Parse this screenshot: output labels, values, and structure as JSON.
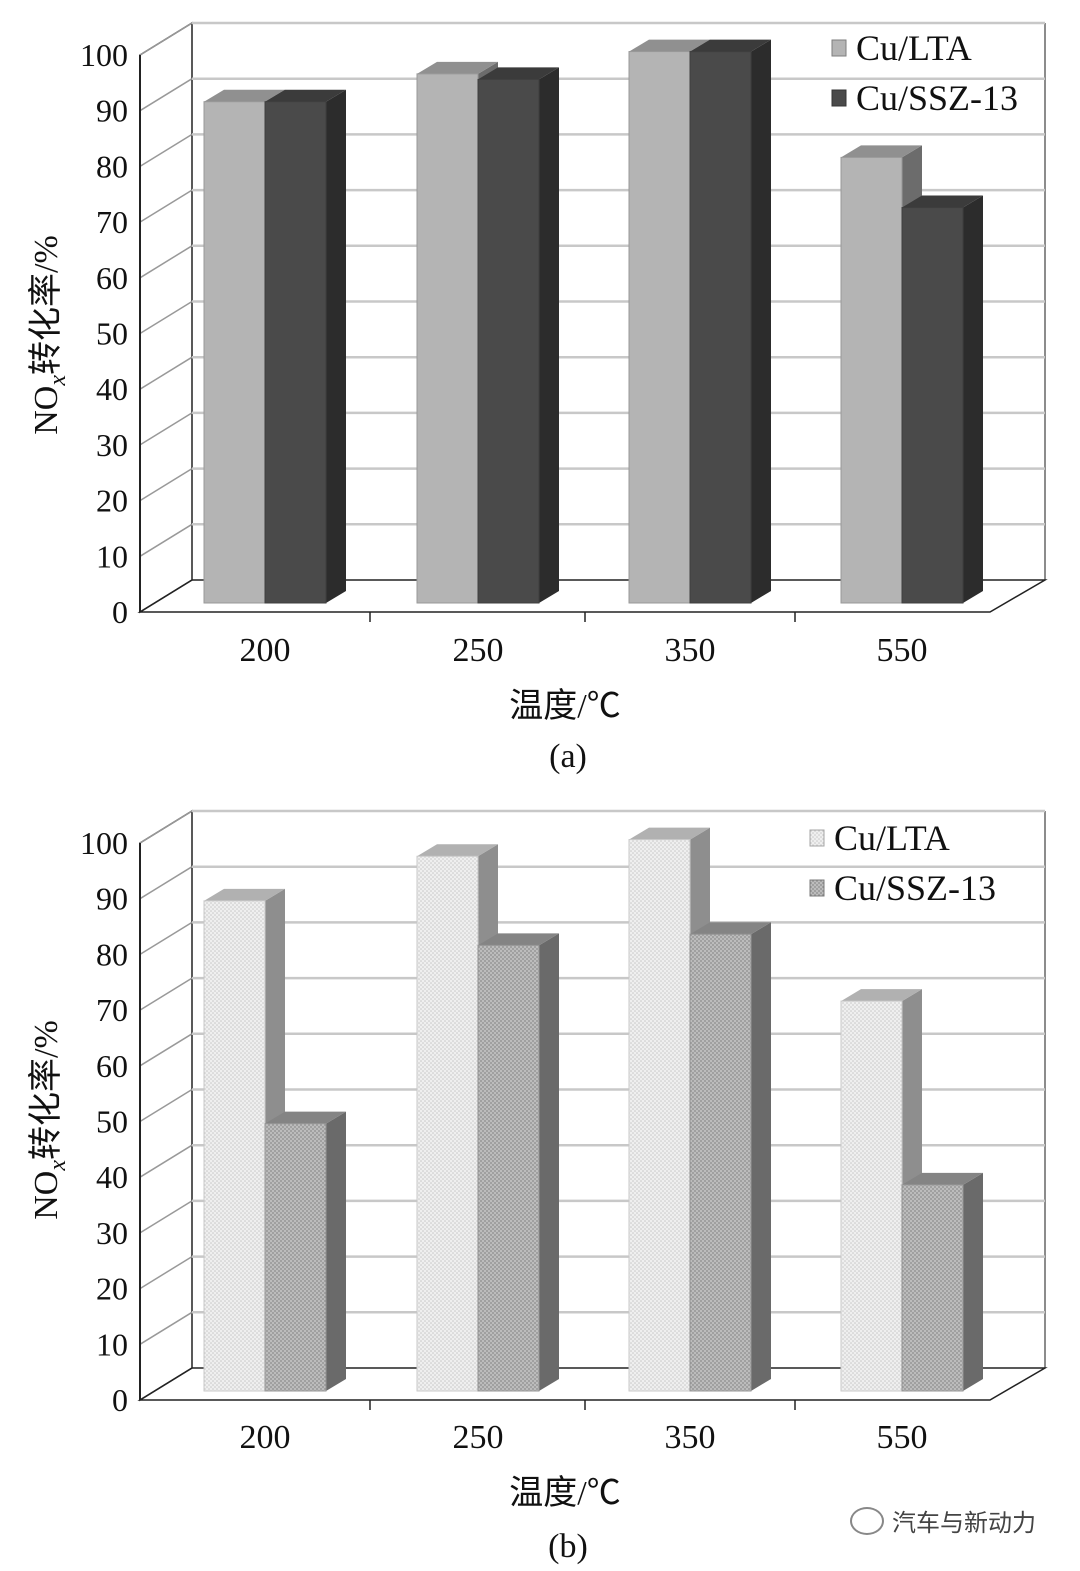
{
  "chart_data": [
    {
      "type": "bar",
      "title": "",
      "caption": "(a)",
      "categories": [
        "200",
        "250",
        "350",
        "550"
      ],
      "xlabel": "温度/℃",
      "ylabel": {
        "main": "NO",
        "sub": "x",
        "rest": "转化率/%"
      },
      "ylim": [
        0,
        100
      ],
      "yticks": [
        "0",
        "10",
        "20",
        "30",
        "40",
        "50",
        "60",
        "70",
        "80",
        "90",
        "100"
      ],
      "grid": true,
      "legend_position": "top-right",
      "series": [
        {
          "name": "Cu/LTA",
          "values": [
            90,
            95,
            99,
            80
          ],
          "color": "#b4b4b4",
          "pattern": "solid"
        },
        {
          "name": "Cu/SSZ-13",
          "values": [
            90,
            94,
            99,
            71
          ],
          "color": "#4a4a4a",
          "pattern": "solid"
        }
      ]
    },
    {
      "type": "bar",
      "title": "",
      "caption": "(b)",
      "categories": [
        "200",
        "250",
        "350",
        "550"
      ],
      "xlabel": "温度/℃",
      "ylabel": {
        "main": "NO",
        "sub": "x",
        "rest": "转化率/%"
      },
      "ylim": [
        0,
        100
      ],
      "yticks": [
        "0",
        "10",
        "20",
        "30",
        "40",
        "50",
        "60",
        "70",
        "80",
        "90",
        "100"
      ],
      "grid": true,
      "legend_position": "top-right",
      "series": [
        {
          "name": "Cu/LTA",
          "values": [
            88,
            96,
            99,
            70
          ],
          "color": "#ececec",
          "pattern": "dots"
        },
        {
          "name": "Cu/SSZ-13",
          "values": [
            48,
            80,
            82,
            37
          ],
          "color": "#b0b0b0",
          "pattern": "dots"
        }
      ]
    }
  ],
  "watermark": "汽车与新动力"
}
